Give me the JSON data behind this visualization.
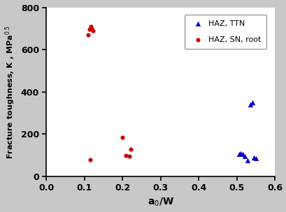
{
  "xlabel": "a$_0$/W",
  "ylabel_text": "Fracture toughness, K , MPa$^{0.5}$",
  "xlim": [
    0.0,
    0.6
  ],
  "ylim": [
    0,
    800
  ],
  "xticks": [
    0.0,
    0.1,
    0.2,
    0.3,
    0.4,
    0.5,
    0.6
  ],
  "yticks": [
    0,
    200,
    400,
    600,
    800
  ],
  "background_color": "#c8c8c8",
  "plot_bg_color": "#ffffff",
  "haz_ttn": {
    "x": [
      0.505,
      0.51,
      0.515,
      0.52,
      0.527,
      0.535,
      0.54,
      0.545,
      0.55
    ],
    "y": [
      107,
      110,
      105,
      95,
      75,
      340,
      350,
      90,
      85
    ],
    "color": "#0000cc",
    "marker": "^",
    "size": 20,
    "label": "HAZ, TTN"
  },
  "haz_sn_root": {
    "x": [
      0.11,
      0.113,
      0.116,
      0.119,
      0.122,
      0.115,
      0.2,
      0.208,
      0.218,
      0.222
    ],
    "y": [
      670,
      695,
      710,
      700,
      690,
      80,
      185,
      100,
      95,
      130
    ],
    "color": "#cc0000",
    "marker": "o",
    "size": 15,
    "label": "HAZ, SN, root"
  },
  "legend_loc": "upper right",
  "legend_fontsize": 8,
  "tick_labelsize": 9,
  "xlabel_fontsize": 10,
  "ylabel_fontsize": 8
}
